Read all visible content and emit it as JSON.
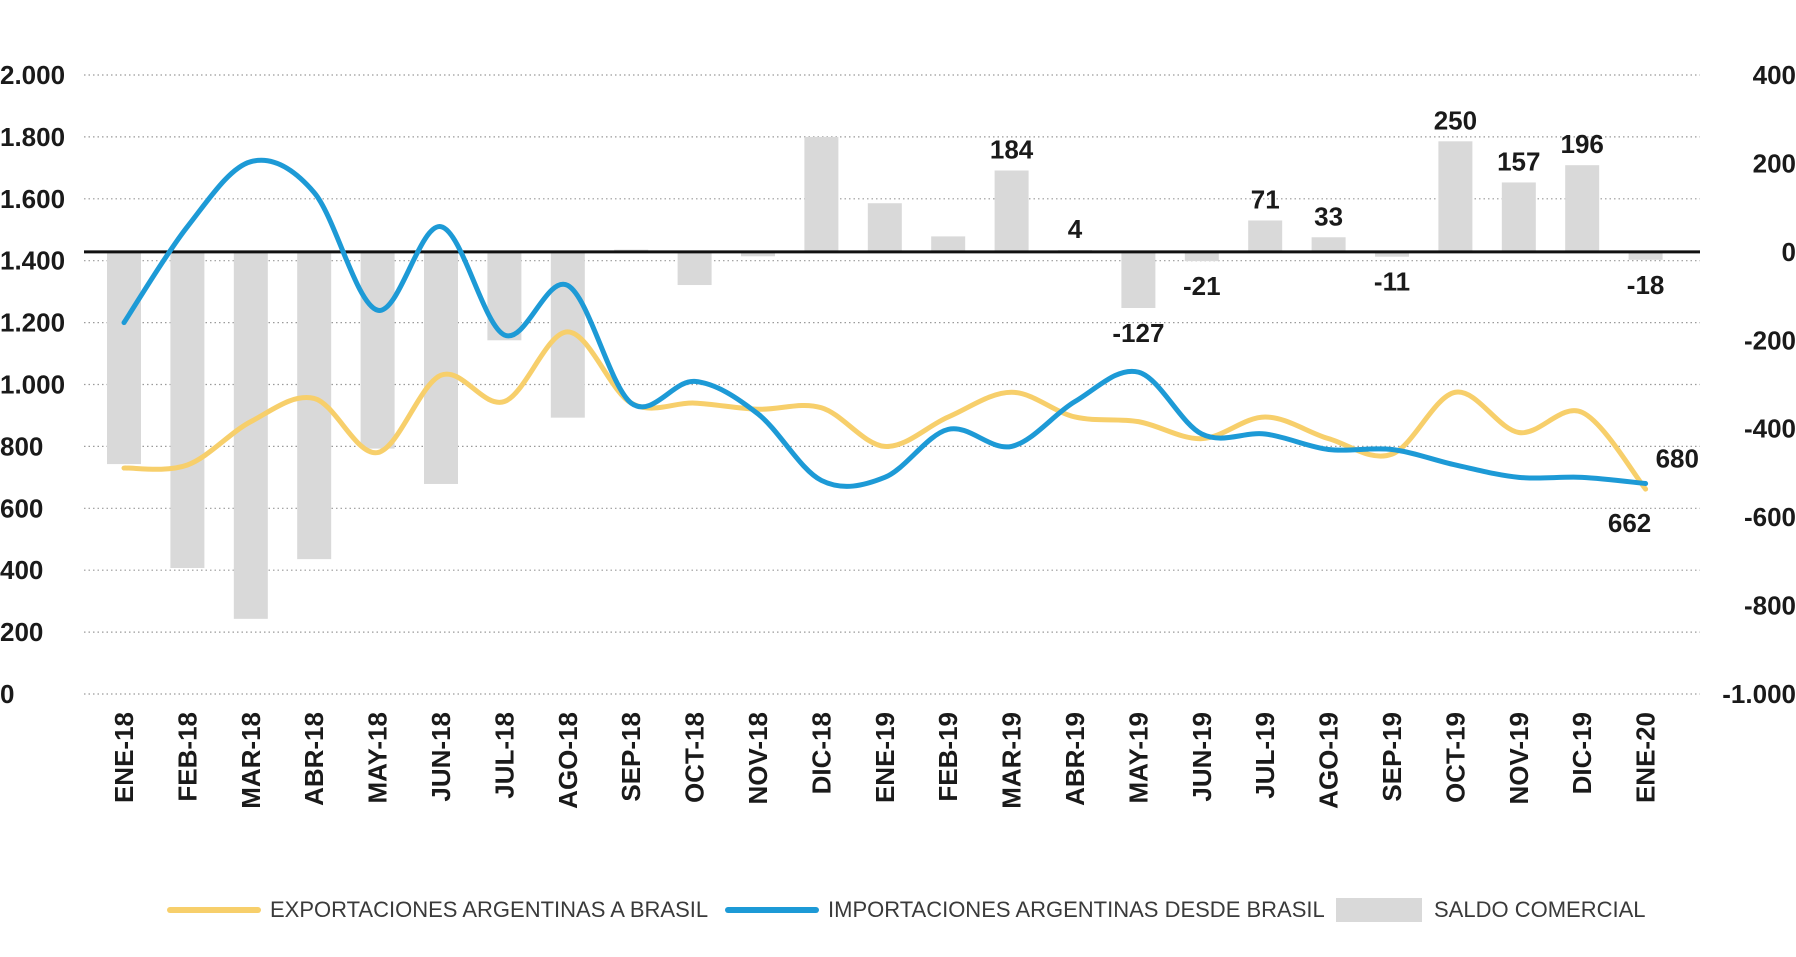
{
  "chart_data": {
    "type": "line",
    "categories": [
      "ENE-18",
      "FEB-18",
      "MAR-18",
      "ABR-18",
      "MAY-18",
      "JUN-18",
      "JUL-18",
      "AGO-18",
      "SEP-18",
      "OCT-18",
      "NOV-18",
      "DIC-18",
      "ENE-19",
      "FEB-19",
      "MAR-19",
      "ABR-19",
      "MAY-19",
      "JUN-19",
      "JUL-19",
      "AGO-19",
      "SEP-19",
      "OCT-19",
      "NOV-19",
      "DIC-19",
      "ENE-20"
    ],
    "left_axis": {
      "ylim": [
        0,
        2000
      ],
      "tick_values": [
        0,
        200,
        400,
        600,
        800,
        1000,
        1200,
        1400,
        1600,
        1800,
        2000
      ],
      "tick_labels": [
        "0",
        "200",
        "400",
        "600",
        "800",
        "1.000",
        "1.200",
        "1.400",
        "1.600",
        "1.800",
        "2.000"
      ]
    },
    "right_axis": {
      "ylim": [
        -1000,
        400
      ],
      "tick_values": [
        -1000,
        -800,
        -600,
        -400,
        -200,
        0,
        200,
        400
      ],
      "tick_labels": [
        "-1.000",
        "-800",
        "-600",
        "-400",
        "-200",
        "0",
        "200",
        "400"
      ]
    },
    "grid": true,
    "legend_position": "bottom",
    "series": [
      {
        "name": "EXPORTACIONES ARGENTINAS A BRASIL",
        "kind": "line",
        "axis": "left",
        "color": "#f7cf6b",
        "values": [
          730,
          740,
          880,
          955,
          780,
          1030,
          945,
          1170,
          940,
          940,
          920,
          925,
          800,
          895,
          975,
          895,
          880,
          825,
          895,
          825,
          775,
          975,
          845,
          910,
          662
        ]
      },
      {
        "name": "IMPORTACIONES ARGENTINAS DESDE BRASIL",
        "kind": "line",
        "axis": "left",
        "color": "#1d9ad6",
        "values": [
          1200,
          1510,
          1720,
          1620,
          1240,
          1510,
          1160,
          1320,
          940,
          1010,
          905,
          690,
          700,
          855,
          800,
          945,
          1040,
          840,
          840,
          790,
          790,
          740,
          700,
          700,
          680
        ]
      },
      {
        "name": "SALDO COMERCIAL",
        "kind": "bar",
        "axis": "right",
        "color": "#d9d9d9",
        "values": [
          -480,
          -715,
          -830,
          -695,
          -445,
          -525,
          -200,
          -375,
          5,
          -75,
          -10,
          260,
          110,
          35,
          184,
          4,
          -127,
          -21,
          71,
          33,
          -11,
          250,
          157,
          196,
          -18
        ]
      }
    ],
    "data_labels": [
      {
        "index": 14,
        "series": 2,
        "text": "184"
      },
      {
        "index": 15,
        "series": 2,
        "text": "4"
      },
      {
        "index": 16,
        "series": 2,
        "text": "-127"
      },
      {
        "index": 17,
        "series": 2,
        "text": "-21"
      },
      {
        "index": 18,
        "series": 2,
        "text": "71"
      },
      {
        "index": 19,
        "series": 2,
        "text": "33"
      },
      {
        "index": 20,
        "series": 2,
        "text": "-11"
      },
      {
        "index": 21,
        "series": 2,
        "text": "250"
      },
      {
        "index": 22,
        "series": 2,
        "text": "157"
      },
      {
        "index": 23,
        "series": 2,
        "text": "196"
      },
      {
        "index": 24,
        "series": 2,
        "text": "-18"
      },
      {
        "index": 24,
        "series": 1,
        "text": "680"
      },
      {
        "index": 24,
        "series": 0,
        "text": "662"
      }
    ]
  }
}
